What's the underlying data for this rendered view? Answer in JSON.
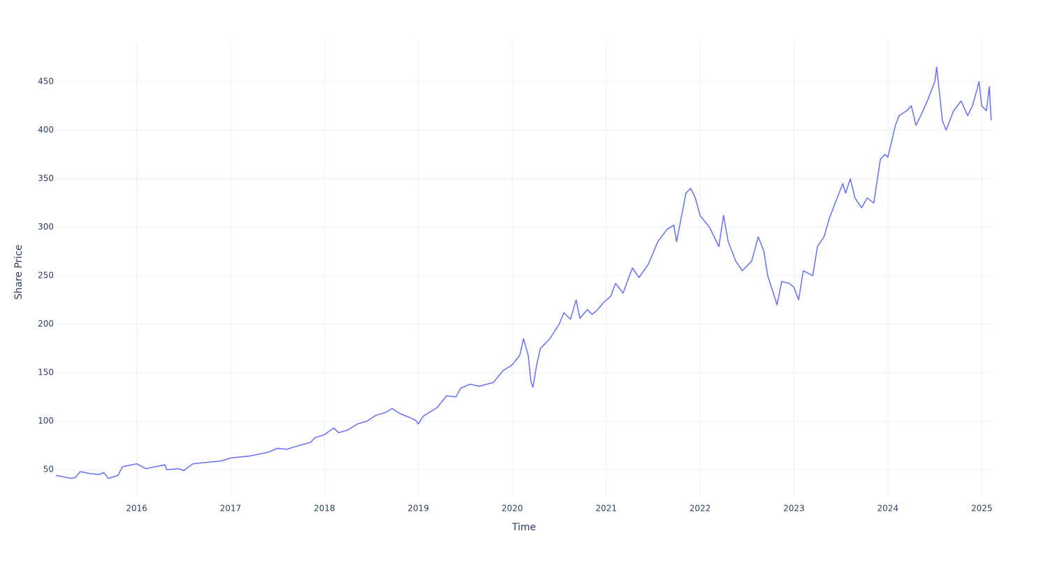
{
  "chart_data": {
    "type": "line",
    "x_label": "Time",
    "y_label": "Share Price",
    "x": [
      2015.14,
      2015.2,
      2015.3,
      2015.35,
      2015.4,
      2015.5,
      2015.6,
      2015.65,
      2015.7,
      2015.8,
      2015.85,
      2015.95,
      2016.0,
      2016.1,
      2016.2,
      2016.3,
      2016.32,
      2016.45,
      2016.5,
      2016.6,
      2016.7,
      2016.9,
      2017.0,
      2017.2,
      2017.4,
      2017.5,
      2017.6,
      2017.7,
      2017.85,
      2017.9,
      2018.0,
      2018.1,
      2018.15,
      2018.25,
      2018.35,
      2018.45,
      2018.55,
      2018.65,
      2018.72,
      2018.8,
      2018.9,
      2018.97,
      2019.0,
      2019.05,
      2019.2,
      2019.3,
      2019.4,
      2019.45,
      2019.55,
      2019.65,
      2019.8,
      2019.9,
      2020.0,
      2020.08,
      2020.12,
      2020.17,
      2020.2,
      2020.22,
      2020.26,
      2020.3,
      2020.4,
      2020.5,
      2020.55,
      2020.62,
      2020.68,
      2020.72,
      2020.8,
      2020.85,
      2020.9,
      2020.97,
      2021.05,
      2021.1,
      2021.18,
      2021.28,
      2021.35,
      2021.45,
      2021.55,
      2021.65,
      2021.72,
      2021.75,
      2021.8,
      2021.85,
      2021.9,
      2021.95,
      2022.0,
      2022.1,
      2022.2,
      2022.25,
      2022.3,
      2022.38,
      2022.45,
      2022.55,
      2022.62,
      2022.68,
      2022.72,
      2022.78,
      2022.82,
      2022.87,
      2022.95,
      2023.0,
      2023.05,
      2023.1,
      2023.2,
      2023.25,
      2023.32,
      2023.38,
      2023.48,
      2023.52,
      2023.55,
      2023.6,
      2023.65,
      2023.72,
      2023.78,
      2023.85,
      2023.92,
      2023.97,
      2024.0,
      2024.08,
      2024.12,
      2024.2,
      2024.25,
      2024.3,
      2024.35,
      2024.42,
      2024.5,
      2024.52,
      2024.58,
      2024.62,
      2024.7,
      2024.78,
      2024.85,
      2024.9,
      2024.95,
      2024.97,
      2025.0,
      2025.05,
      2025.08,
      2025.1
    ],
    "series": [
      {
        "name": "Share Price",
        "color": "#636efa",
        "values": [
          44,
          43,
          41,
          42,
          48,
          46,
          45,
          47,
          41,
          44,
          53,
          55,
          56,
          51,
          53,
          55,
          50,
          51,
          49,
          56,
          57,
          59,
          62,
          64,
          68,
          72,
          71,
          74,
          78,
          83,
          86,
          93,
          88,
          91,
          97,
          100,
          106,
          109,
          113,
          108,
          104,
          101,
          97,
          105,
          114,
          126,
          125,
          134,
          138,
          136,
          140,
          152,
          158,
          168,
          185,
          168,
          140,
          135,
          158,
          175,
          185,
          200,
          212,
          205,
          225,
          206,
          215,
          210,
          214,
          222,
          229,
          242,
          232,
          258,
          248,
          262,
          285,
          298,
          302,
          285,
          310,
          335,
          340,
          330,
          312,
          300,
          280,
          312,
          285,
          265,
          255,
          265,
          290,
          275,
          250,
          232,
          220,
          244,
          242,
          238,
          225,
          255,
          250,
          280,
          290,
          310,
          335,
          345,
          335,
          350,
          330,
          320,
          330,
          325,
          370,
          375,
          372,
          405,
          415,
          420,
          425,
          405,
          415,
          430,
          450,
          465,
          410,
          400,
          420,
          430,
          415,
          425,
          442,
          450,
          425,
          420,
          445,
          410
        ]
      }
    ],
    "xlim": [
      2015.14,
      2025.11
    ],
    "ylim": [
      22,
      491
    ],
    "xticks": [
      2016,
      2017,
      2018,
      2019,
      2020,
      2021,
      2022,
      2023,
      2024,
      2025
    ],
    "yticks": [
      50,
      100,
      150,
      200,
      250,
      300,
      350,
      400,
      450
    ],
    "grid": true
  }
}
